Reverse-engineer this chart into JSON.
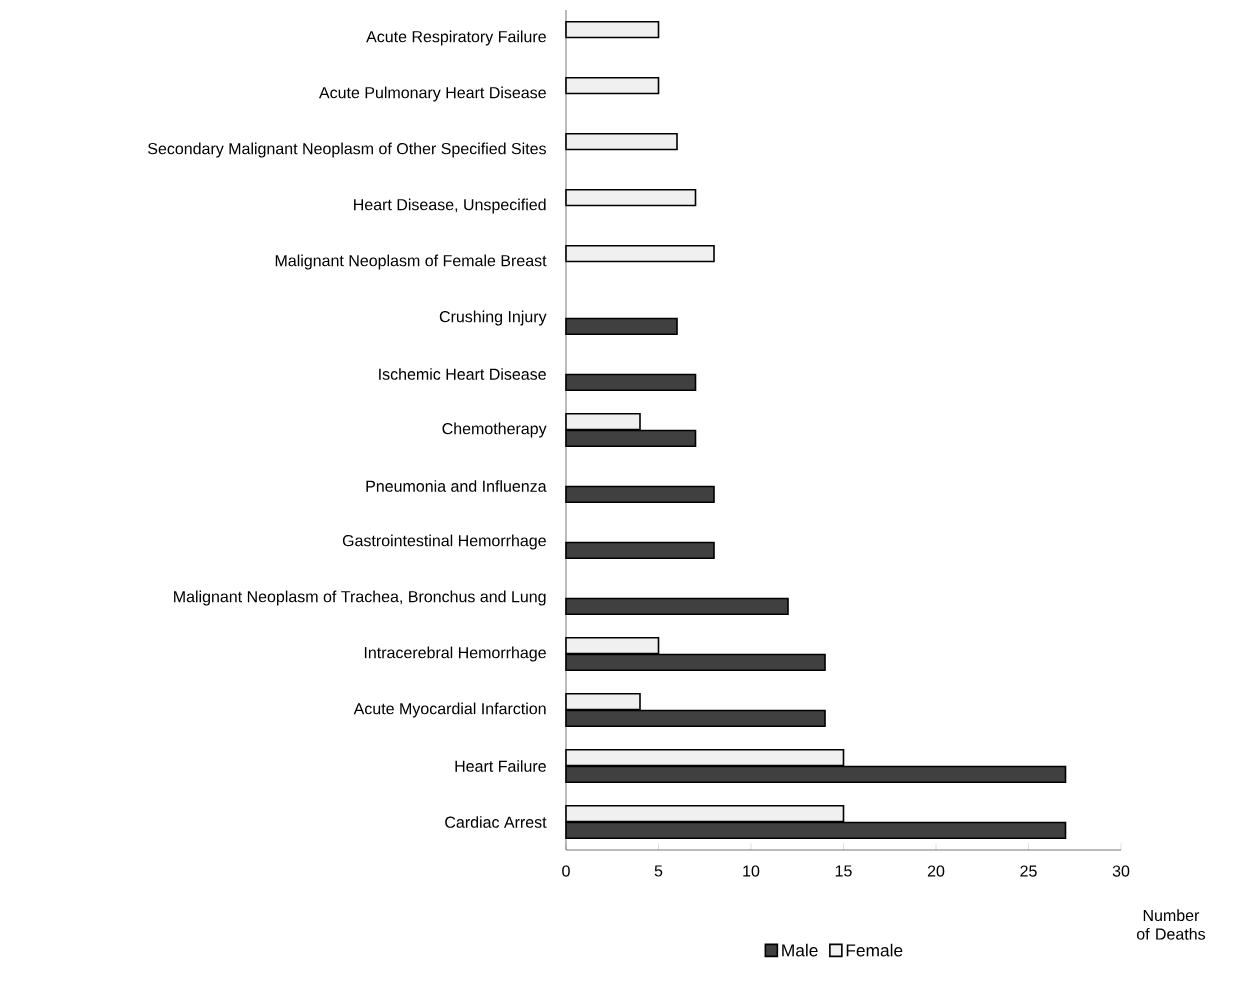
{
  "chart_data": {
    "type": "bar",
    "orientation": "horizontal",
    "xlabel": "Number of Deaths",
    "categories": [
      "Acute Respiratory Failure",
      "Acute Pulmonary Heart Disease",
      "Secondary Malignant Neoplasm of Other Specified Sites",
      "Heart Disease, Unspecified",
      "Malignant Neoplasm of Female Breast",
      "Crushing Injury",
      "Ischemic Heart Disease",
      "Chemotherapy",
      "Pneumonia and Influenza",
      "Gastrointestinal Hemorrhage",
      "Malignant Neoplasm of Trachea, Bronchus and Lung",
      "Intracerebral Hemorrhage",
      "Acute Myocardial Infarction",
      "Heart Failure",
      "Cardiac Arrest"
    ],
    "series": [
      {
        "name": "Male",
        "color": "#404040",
        "values": [
          null,
          null,
          null,
          null,
          null,
          6,
          7,
          7,
          8,
          8,
          12,
          14,
          14,
          27,
          27
        ]
      },
      {
        "name": "Female",
        "color": "#f0f0f0",
        "values": [
          5,
          5,
          6,
          7,
          8,
          null,
          null,
          4,
          null,
          null,
          null,
          5,
          4,
          15,
          15
        ]
      }
    ],
    "xlim": [
      0,
      30
    ],
    "xticks": [
      0,
      5,
      10,
      15,
      20,
      25,
      30
    ],
    "legend": "bottom",
    "grid": false
  }
}
